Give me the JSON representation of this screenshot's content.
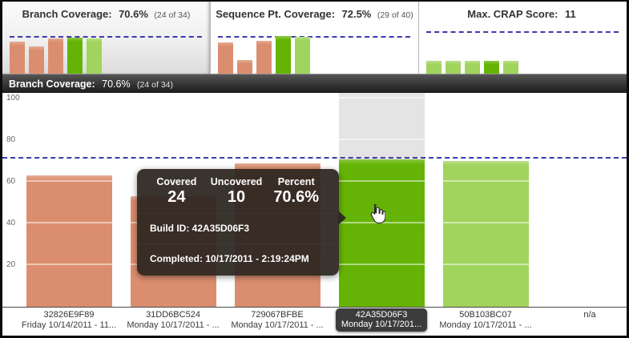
{
  "summary_panels": [
    {
      "title": "Branch Coverage:",
      "value": "70.6%",
      "detail": "(24 of 34)"
    },
    {
      "title": "Sequence Pt. Coverage:",
      "value": "72.5%",
      "detail": "(29 of 40)"
    },
    {
      "title": "Max. CRAP Score:",
      "value": "11",
      "detail": ""
    }
  ],
  "chart_header": {
    "title": "Branch Coverage:",
    "value": "70.6%",
    "detail": "(24 of 34)"
  },
  "tooltip": {
    "stats": [
      {
        "label": "Covered",
        "value": "24"
      },
      {
        "label": "Uncovered",
        "value": "10"
      },
      {
        "label": "Percent",
        "value": "70.6%"
      }
    ],
    "build_line": "Build ID: 42A35D06F3",
    "completed_line": "Completed: 10/17/2011 - 2:19:24PM"
  },
  "colors": {
    "salmon": "#DB8E6F",
    "green": "#65B405",
    "lightgreen": "#A0D45C",
    "threshold": "#3B3BAB",
    "highlight_column": "#E4E4E4"
  },
  "chart_data": [
    {
      "type": "bar",
      "name": "branch-coverage-main",
      "title": "Branch Coverage: 70.6% (24 of 34)",
      "categories": [
        [
          "32826E9F89",
          "Friday 10/14/2011 - 11..."
        ],
        [
          "31DD6BC524",
          "Monday 10/17/2011 - ..."
        ],
        [
          "729067BFBE",
          "Monday 10/17/2011 - ..."
        ],
        [
          "42A35D06F3",
          "Monday 10/17/201..."
        ],
        [
          "50B103BC07",
          "Monday 10/17/2011 - ..."
        ],
        [
          "n/a",
          ""
        ]
      ],
      "values": [
        63,
        53,
        69,
        70.6,
        70,
        null
      ],
      "bar_colors": [
        "salmon",
        "salmon",
        "salmon",
        "green",
        "lightgreen",
        null
      ],
      "highlighted_index": 3,
      "threshold": 71,
      "yticks": [
        20,
        40,
        60,
        80,
        100
      ],
      "ylim": [
        0,
        100
      ],
      "grid": true,
      "legend": false
    },
    {
      "type": "bar",
      "name": "branch-coverage-mini",
      "values": [
        63,
        53,
        69,
        70.6,
        70
      ],
      "bar_colors": [
        "salmon",
        "salmon",
        "salmon",
        "green",
        "lightgreen"
      ],
      "threshold": 71,
      "ylim": [
        0,
        100
      ]
    },
    {
      "type": "bar",
      "name": "sequence-coverage-mini",
      "values": [
        62,
        27,
        65,
        74,
        72.5
      ],
      "bar_colors": [
        "salmon",
        "salmon",
        "salmon",
        "green",
        "lightgreen"
      ],
      "threshold": 71,
      "ylim": [
        0,
        100
      ]
    },
    {
      "type": "bar",
      "name": "crap-score-mini",
      "values": [
        25,
        25,
        25,
        25,
        25
      ],
      "bar_colors": [
        "lightgreen",
        "lightgreen",
        "lightgreen",
        "green",
        "lightgreen"
      ],
      "threshold": 80,
      "ylim": [
        0,
        100
      ]
    }
  ]
}
